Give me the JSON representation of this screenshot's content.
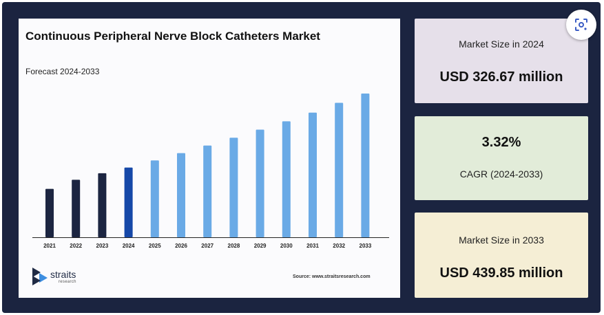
{
  "chart_data": {
    "type": "bar",
    "title": "Continuous Peripheral Nerve Block Catheters Market",
    "subtitle": "Forecast 2024-2033",
    "categories": [
      "2021",
      "2022",
      "2023",
      "2024",
      "2025",
      "2026",
      "2027",
      "2028",
      "2029",
      "2030",
      "2031",
      "2032",
      "2033"
    ],
    "values": [
      294,
      308,
      318,
      326.67,
      337.5,
      348.7,
      360.3,
      372.2,
      384.6,
      397.4,
      410.6,
      425.6,
      439.85
    ],
    "bar_colors": [
      "#1c2541",
      "#1c2541",
      "#1c2541",
      "#1648a8",
      "#6aaae6",
      "#6aaae6",
      "#6aaae6",
      "#6aaae6",
      "#6aaae6",
      "#6aaae6",
      "#6aaae6",
      "#6aaae6",
      "#6aaae6"
    ],
    "xlabel": "",
    "ylabel": "",
    "grid": false,
    "legend": "none"
  },
  "brand": {
    "name": "straits",
    "sub": "research"
  },
  "source": "Source: www.straitsresearch.com",
  "stats": {
    "market_2024": {
      "label": "Market Size in 2024",
      "value": "USD 326.67 million"
    },
    "cagr": {
      "value": "3.32%",
      "label": "CAGR (2024-2033)"
    },
    "market_2033": {
      "label": "Market Size in 2033",
      "value": "USD 439.85 million"
    }
  },
  "colors": {
    "background": "#1b2440",
    "card_2024": "#e6e0ea",
    "card_cagr": "#e2ecd9",
    "card_2033": "#f5eed5"
  },
  "icons": {
    "visual_search": "lens-icon"
  }
}
